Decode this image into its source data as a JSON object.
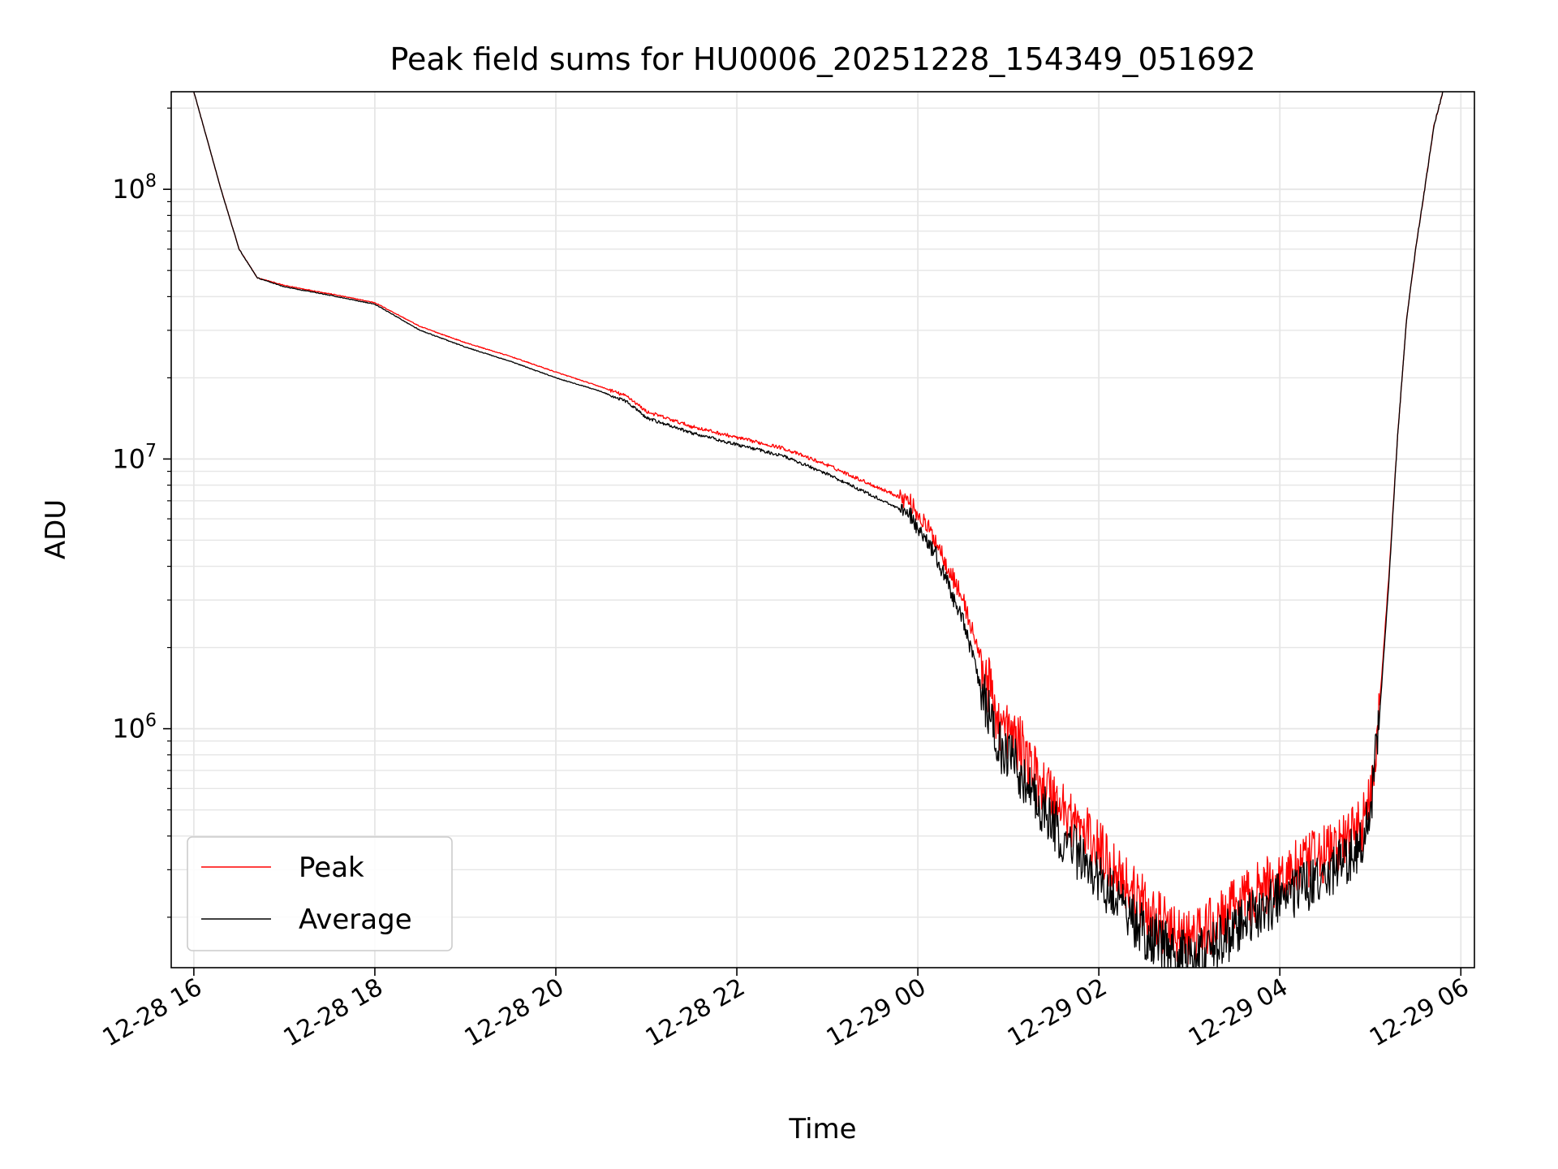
{
  "chart_data": {
    "type": "line",
    "title": "Peak field sums for HU0006_20251228_154349_051692",
    "xlabel": "Time",
    "ylabel": "ADU",
    "yscale": "log",
    "xlim_hours": [
      15.75,
      30.15
    ],
    "ylim": [
      130000,
      230000000
    ],
    "grid": true,
    "legend_position": "lower left",
    "x_ticks": [
      {
        "hours": 16,
        "label": "12-28 16"
      },
      {
        "hours": 18,
        "label": "12-28 18"
      },
      {
        "hours": 20,
        "label": "12-28 20"
      },
      {
        "hours": 22,
        "label": "12-28 22"
      },
      {
        "hours": 24,
        "label": "12-29 00"
      },
      {
        "hours": 26,
        "label": "12-29 02"
      },
      {
        "hours": 28,
        "label": "12-29 04"
      },
      {
        "hours": 30,
        "label": "12-29 06"
      }
    ],
    "y_ticks": [
      {
        "value": 1000000,
        "base": "10",
        "exp": "6"
      },
      {
        "value": 10000000,
        "base": "10",
        "exp": "7"
      },
      {
        "value": 100000000,
        "base": "10",
        "exp": "8"
      }
    ],
    "series": [
      {
        "name": "Peak",
        "color": "#ff0000",
        "noise": 0.22,
        "x_hours": [
          16.0,
          16.3,
          16.5,
          16.7,
          17.0,
          17.5,
          18.0,
          18.5,
          19.0,
          19.5,
          20.0,
          20.5,
          20.8,
          21.0,
          21.5,
          22.0,
          22.5,
          23.0,
          23.5,
          23.9,
          24.2,
          24.5,
          24.7,
          24.9,
          25.1,
          25.3,
          25.6,
          25.9,
          26.2,
          26.5,
          26.8,
          27.0,
          27.3,
          27.6,
          28.0,
          28.4,
          28.7,
          28.9,
          29.0,
          29.1,
          29.2,
          29.3,
          29.4,
          29.5,
          29.6,
          29.7,
          29.8
        ],
        "y": [
          230000000,
          100000000,
          60000000,
          47000000,
          44000000,
          41000000,
          38000000,
          31000000,
          27000000,
          24000000,
          21000000,
          18500000,
          17000000,
          15000000,
          13200000,
          12000000,
          11000000,
          9500000,
          8000000,
          7000000,
          5000000,
          3000000,
          1800000,
          1050000,
          900000,
          680000,
          510000,
          390000,
          300000,
          220000,
          175000,
          165000,
          190000,
          230000,
          280000,
          330000,
          380000,
          440000,
          560000,
          1200000,
          3500000,
          12000000,
          33000000,
          60000000,
          100000000,
          170000000,
          230000000
        ]
      },
      {
        "name": "Average",
        "color": "#000000",
        "noise": 0.2,
        "x_hours": [
          16.0,
          16.3,
          16.5,
          16.7,
          17.0,
          17.5,
          18.0,
          18.5,
          19.0,
          19.5,
          20.0,
          20.5,
          20.8,
          21.0,
          21.5,
          22.0,
          22.5,
          23.0,
          23.5,
          23.9,
          24.2,
          24.5,
          24.7,
          24.9,
          25.1,
          25.3,
          25.6,
          25.9,
          26.2,
          26.5,
          26.8,
          27.0,
          27.3,
          27.6,
          28.0,
          28.4,
          28.7,
          28.9,
          29.0,
          29.1,
          29.2,
          29.3,
          29.4,
          29.5,
          29.6,
          29.7,
          29.8
        ],
        "y": [
          230000000,
          100000000,
          60000000,
          47000000,
          43500000,
          40500000,
          37500000,
          30000000,
          26000000,
          23000000,
          20000000,
          17800000,
          16200000,
          14200000,
          12500000,
          11300000,
          10300000,
          8800000,
          7300000,
          6300000,
          4400000,
          2500000,
          1400000,
          850000,
          720000,
          540000,
          400000,
          300000,
          235000,
          175000,
          150000,
          140000,
          158000,
          190000,
          235000,
          275000,
          320000,
          380000,
          480000,
          1100000,
          3300000,
          12000000,
          33000000,
          60000000,
          100000000,
          170000000,
          230000000
        ]
      }
    ]
  }
}
